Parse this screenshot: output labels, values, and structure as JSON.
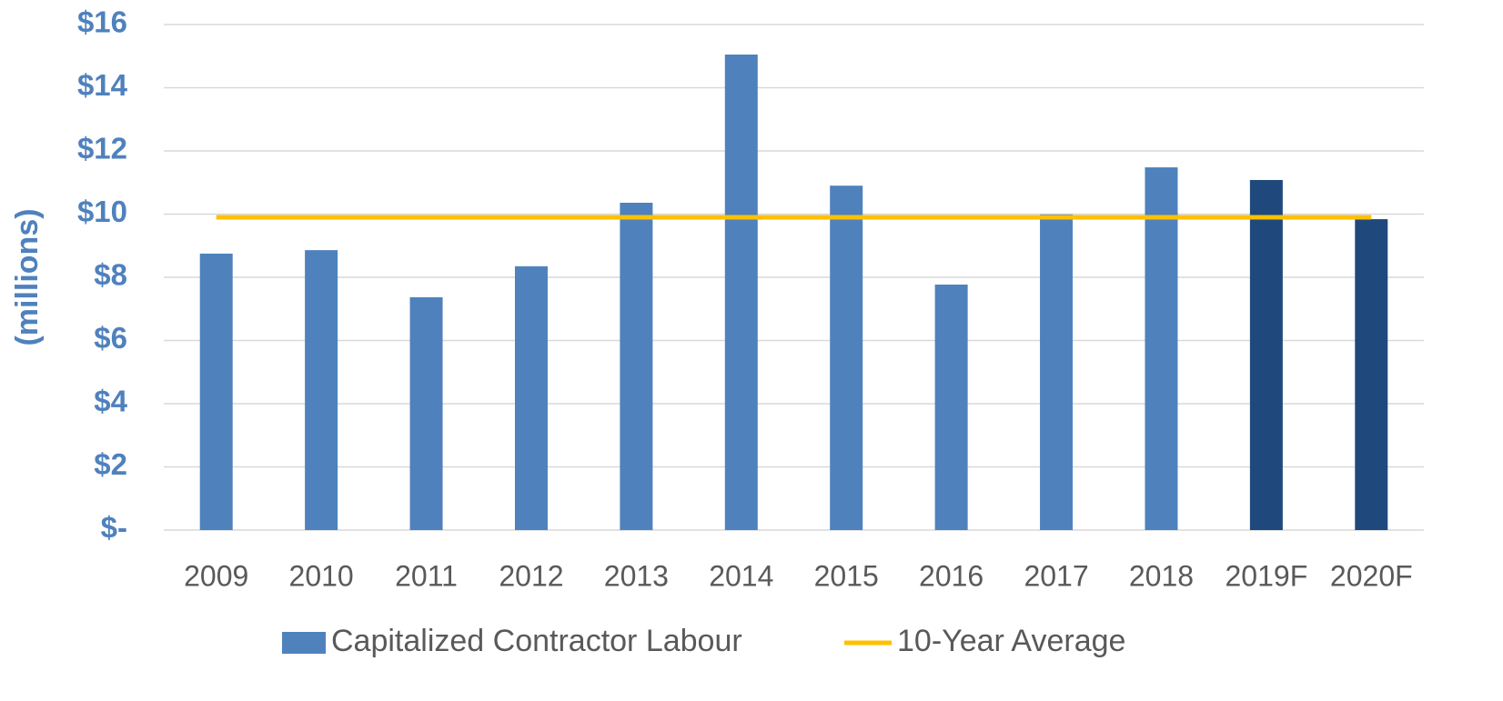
{
  "chart_data": {
    "type": "bar",
    "y_label": "(millions)",
    "categories": [
      "2009",
      "2010",
      "2011",
      "2012",
      "2013",
      "2014",
      "2015",
      "2016",
      "2017",
      "2018",
      "2019F",
      "2020F"
    ],
    "series": [
      {
        "name": "Capitalized Contractor Labour",
        "type": "bar",
        "color": "#4f81bd",
        "bar_colors": [
          "#4f81bd",
          "#4f81bd",
          "#4f81bd",
          "#4f81bd",
          "#4f81bd",
          "#4f81bd",
          "#4f81bd",
          "#4f81bd",
          "#4f81bd",
          "#4f81bd",
          "#1f497d",
          "#1f497d"
        ],
        "values": [
          8.75,
          8.86,
          7.37,
          8.35,
          10.36,
          15.05,
          10.9,
          7.77,
          9.99,
          11.48,
          11.08,
          9.84
        ]
      },
      {
        "name": "10-Year Average",
        "type": "line",
        "color": "#ffc000",
        "values": [
          9.9,
          9.9,
          9.9,
          9.9,
          9.9,
          9.9,
          9.9,
          9.9,
          9.9,
          9.9,
          9.9,
          9.9
        ]
      }
    ],
    "ylim": [
      0,
      16
    ],
    "yticks": [
      {
        "value": 0,
        "label": "$-"
      },
      {
        "value": 2,
        "label": "$2"
      },
      {
        "value": 4,
        "label": "$4"
      },
      {
        "value": 6,
        "label": "$6"
      },
      {
        "value": 8,
        "label": "$8"
      },
      {
        "value": 10,
        "label": "$10"
      },
      {
        "value": 12,
        "label": "$12"
      },
      {
        "value": 14,
        "label": "$14"
      },
      {
        "value": 16,
        "label": "$16"
      }
    ],
    "grid": true
  }
}
